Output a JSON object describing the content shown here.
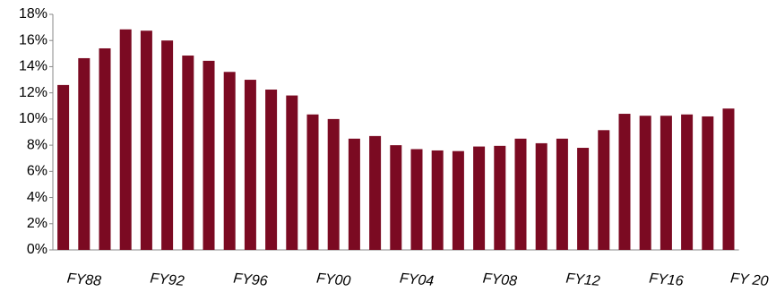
{
  "chart_data": {
    "type": "bar",
    "categories": [
      null,
      "FY88",
      null,
      null,
      null,
      "FY92",
      null,
      null,
      null,
      "FY96",
      null,
      null,
      null,
      "FY00",
      null,
      null,
      null,
      "FY04",
      null,
      null,
      null,
      "FY08",
      null,
      null,
      null,
      "FY12",
      null,
      null,
      null,
      "FY16",
      null,
      null,
      null,
      "FY 20"
    ],
    "values": [
      12.6,
      14.65,
      15.4,
      16.85,
      16.75,
      16.0,
      14.85,
      14.45,
      13.6,
      13.0,
      12.25,
      11.8,
      10.35,
      10.0,
      8.5,
      8.7,
      8.0,
      7.7,
      7.6,
      7.55,
      7.9,
      7.95,
      8.5,
      8.15,
      8.5,
      7.8,
      9.15,
      10.4,
      10.25,
      10.25,
      10.35,
      10.2,
      10.8,
      null
    ],
    "color": "#7b0a22",
    "ylim": [
      0,
      18
    ],
    "yticks": [
      {
        "value": 0,
        "label": "0%"
      },
      {
        "value": 2,
        "label": "2%"
      },
      {
        "value": 4,
        "label": "4%"
      },
      {
        "value": 6,
        "label": "6%"
      },
      {
        "value": 8,
        "label": "8%"
      },
      {
        "value": 10,
        "label": "10%"
      },
      {
        "value": 12,
        "label": "12%"
      },
      {
        "value": 14,
        "label": "14%"
      },
      {
        "value": 16,
        "label": "16%"
      },
      {
        "value": 18,
        "label": "18%"
      }
    ],
    "grid": false
  }
}
